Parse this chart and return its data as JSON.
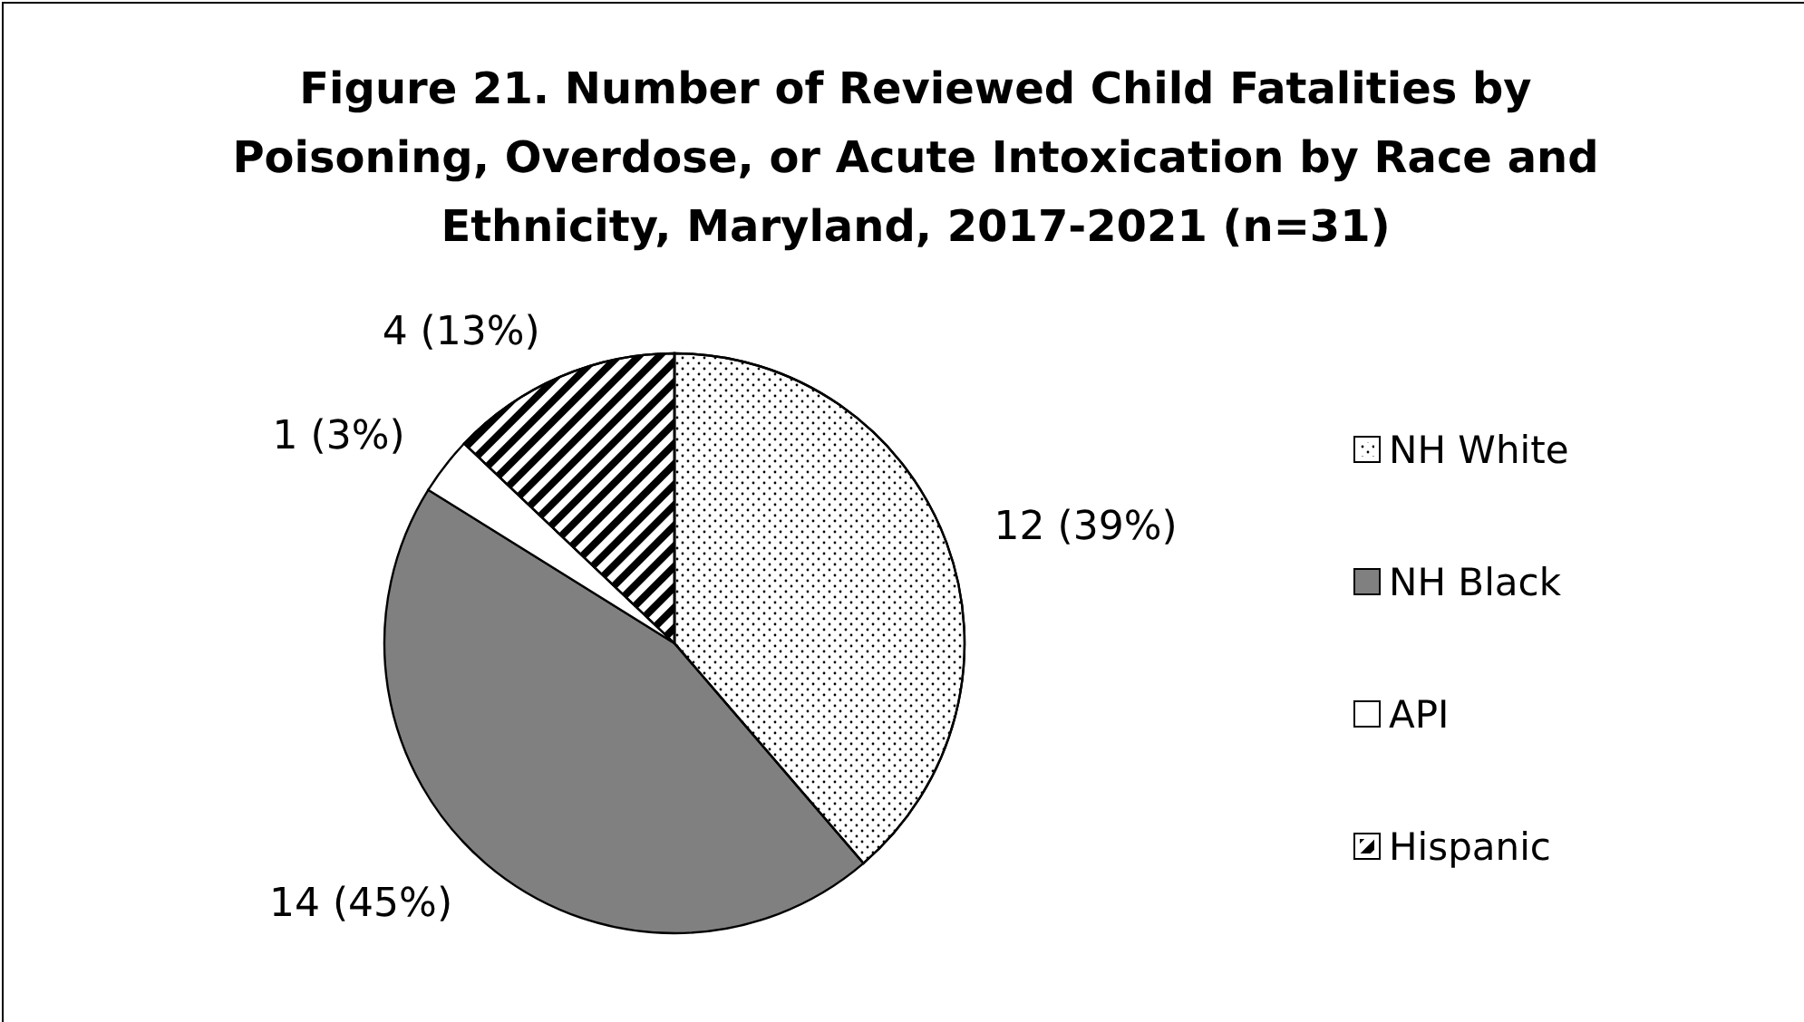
{
  "chart_data": {
    "type": "pie",
    "title": "Figure 21. Number of Reviewed Child Fatalities by Poisoning, Overdose, or Acute Intoxication by Race and Ethnicity, Maryland, 2017-2021 (n=31)",
    "categories": [
      "NH White",
      "NH Black",
      "API",
      "Hispanic"
    ],
    "values": [
      12,
      14,
      1,
      4
    ],
    "colors": [
      "#ffffff",
      "#808080",
      "#ffffff",
      "#ffffff"
    ],
    "value_labels": [
      "12 (39%)",
      "14 (45%)",
      "1 (3%)",
      "4 (13%)"
    ],
    "legend": "right"
  }
}
